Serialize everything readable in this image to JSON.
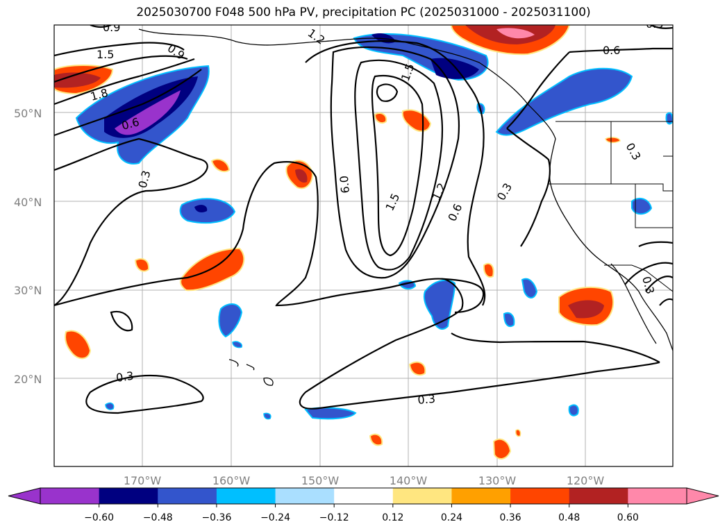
{
  "title": "2025030700 F048 500 hPa PV, precipitation PC (2025031000 - 2025031100)",
  "map": {
    "lat_labels": [
      "50°N",
      "40°N",
      "30°N",
      "20°N"
    ],
    "lon_labels": [
      "170°W",
      "160°W",
      "150°W",
      "140°W",
      "130°W",
      "120°W"
    ],
    "contour_labels": [
      "0.9",
      "1.5",
      "1.8",
      "0.6",
      "0.3",
      "0.9",
      "1.2",
      "1.5",
      "0.6",
      "0.3",
      "0.3",
      "0.3",
      "6.0",
      "1.5",
      "1.2",
      "0.6",
      "0.3",
      "0.3",
      "0.3"
    ]
  },
  "colorbar": {
    "ticks": [
      "−0.60",
      "−0.48",
      "−0.36",
      "−0.24",
      "−0.12",
      "0.12",
      "0.24",
      "0.36",
      "0.48",
      "0.60"
    ],
    "colors": [
      "#9933cc",
      "#000080",
      "#3355cc",
      "#00bfff",
      "#aadfff",
      "#ffffff",
      "#ffe680",
      "#ffa000",
      "#ff4500",
      "#b22222",
      "#ff88aa"
    ],
    "extend_low_color": "#9933cc",
    "extend_high_color": "#ff88aa"
  }
}
